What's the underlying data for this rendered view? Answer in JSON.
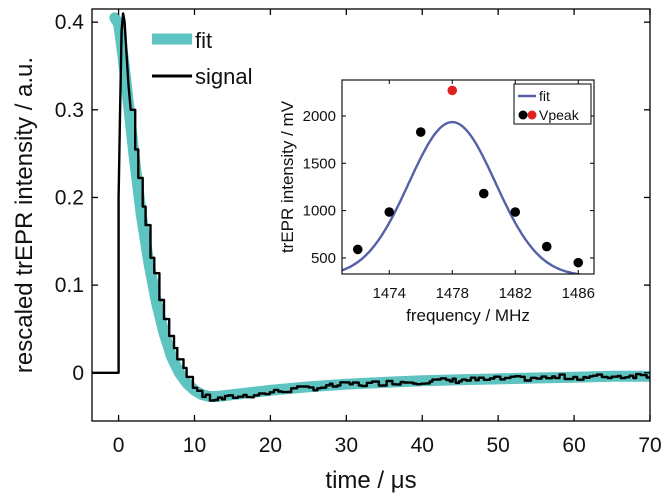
{
  "chart_data": [
    {
      "type": "line",
      "title": "",
      "xlabel": "time / μs",
      "ylabel": "rescaled trEPR intensity / a.u.",
      "xlim": [
        -3.5,
        70
      ],
      "ylim": [
        -0.055,
        0.415
      ],
      "xticks": [
        0,
        10,
        20,
        30,
        40,
        50,
        60,
        70
      ],
      "xtick_labels": [
        "0",
        "10",
        "20",
        "30",
        "40",
        "50",
        "60",
        "70"
      ],
      "yticks": [
        0,
        0.1,
        0.2,
        0.3,
        0.4
      ],
      "ytick_labels": [
        "0",
        "0.1",
        "0.2",
        "0.3",
        "0.4"
      ],
      "grid": false,
      "legend_position": "top-left",
      "colors": {
        "fit": "#5ec4c2",
        "signal": "#000000"
      },
      "series": [
        {
          "name": "fit",
          "x": [
            -0.5,
            0.0,
            0.3,
            0.6,
            1,
            1.5,
            2,
            3,
            4,
            5,
            6,
            7,
            8,
            9,
            10,
            11,
            12,
            13,
            14,
            16,
            18,
            20,
            25,
            30,
            35,
            40,
            45,
            50,
            55,
            60,
            65,
            70
          ],
          "y": [
            0.405,
            0.398,
            0.38,
            0.36,
            0.33,
            0.29,
            0.25,
            0.18,
            0.125,
            0.08,
            0.045,
            0.018,
            0.0,
            -0.012,
            -0.02,
            -0.025,
            -0.027,
            -0.027,
            -0.026,
            -0.024,
            -0.022,
            -0.02,
            -0.016,
            -0.013,
            -0.011,
            -0.009,
            -0.008,
            -0.007,
            -0.006,
            -0.005,
            -0.004,
            -0.004
          ]
        },
        {
          "name": "signal",
          "x": [
            -3.5,
            -1,
            -0.1,
            0.0,
            0.2,
            0.4,
            0.6,
            0.8,
            1.0,
            1.3,
            1.6,
            2,
            2.5,
            3,
            3.5,
            4,
            5,
            6,
            7,
            8,
            9,
            10,
            11,
            12,
            13,
            14,
            15,
            17,
            19,
            20,
            22,
            24,
            26,
            28,
            30,
            32,
            34,
            36,
            38,
            40,
            42,
            44,
            46,
            48,
            50,
            52,
            54,
            56,
            58,
            60,
            62,
            64,
            66,
            68,
            70
          ],
          "y": [
            0.0,
            0.0,
            0.0,
            0.2,
            0.3,
            0.39,
            0.41,
            0.4,
            0.37,
            0.33,
            0.3,
            0.27,
            0.23,
            0.2,
            0.17,
            0.14,
            0.1,
            0.062,
            0.035,
            0.012,
            -0.005,
            -0.018,
            -0.026,
            -0.03,
            -0.03,
            -0.029,
            -0.027,
            -0.026,
            -0.024,
            -0.022,
            -0.02,
            -0.018,
            -0.017,
            -0.015,
            -0.013,
            -0.013,
            -0.012,
            -0.011,
            -0.01,
            -0.01,
            -0.009,
            -0.009,
            -0.008,
            -0.008,
            -0.007,
            -0.007,
            -0.006,
            -0.006,
            -0.005,
            -0.005,
            -0.005,
            -0.004,
            -0.004,
            -0.003,
            -0.003
          ]
        }
      ]
    },
    {
      "type": "scatter",
      "title": "",
      "xlabel": "frequency / MHz",
      "ylabel": "trEPR intensity / mV",
      "xlim": [
        1471,
        1487
      ],
      "ylim": [
        330,
        2380
      ],
      "xticks": [
        1474,
        1478,
        1482,
        1486
      ],
      "xtick_labels": [
        "1474",
        "1478",
        "1482",
        "1486"
      ],
      "yticks": [
        500,
        1000,
        1500,
        2000
      ],
      "ytick_labels": [
        "500",
        "1000",
        "1500",
        "2000"
      ],
      "grid": false,
      "legend_position": "top-right",
      "colors": {
        "fit": "#5560a8",
        "points": "#000000",
        "peak": "#e0221f"
      },
      "fit_curve": {
        "name": "fit",
        "model": "gaussian",
        "center": 1478,
        "amplitude": 1630,
        "sigma": 2.75,
        "offset": 305
      },
      "points": [
        {
          "x": 1472,
          "y": 590
        },
        {
          "x": 1474,
          "y": 985
        },
        {
          "x": 1476,
          "y": 1830
        },
        {
          "x": 1480,
          "y": 1180
        },
        {
          "x": 1482,
          "y": 985
        },
        {
          "x": 1484,
          "y": 620
        },
        {
          "x": 1486,
          "y": 450
        }
      ],
      "peak_point": {
        "x": 1478,
        "y": 2270
      },
      "legend": {
        "fit": "fit",
        "vpeak": "Vpeak"
      }
    }
  ]
}
